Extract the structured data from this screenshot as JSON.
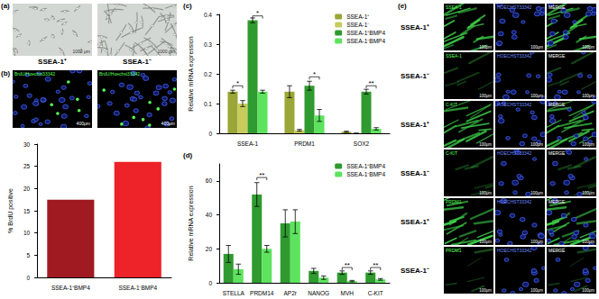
{
  "images": {
    "panel_labels": [
      "(a)",
      "(b)",
      "(c)",
      "(d)",
      "(e)"
    ],
    "a": {
      "captions": [
        "SSEA-1⁺",
        "SSEA-1⁻"
      ],
      "scale_bar": "1000 μm"
    },
    "b": {
      "stain": "BrdU/Hoechst33342",
      "scale_bar": "400μm"
    },
    "e": {
      "row_labels": [
        "SSEA-1⁺",
        "SSEA-1⁻",
        "SSEA-1⁺",
        "SSEA-1⁻",
        "SSEA-1⁺",
        "SSEA-1⁻"
      ],
      "markers": [
        "SSEA-1",
        "C-KIT",
        "PRDM1"
      ],
      "counterstain": "HOECHST33342",
      "merge": "MERGE",
      "scale_bar": "100μm"
    }
  },
  "chart_data": [
    {
      "type": "bar",
      "categories": [
        "SSEA-1⁺BMP4",
        "SSEA-1⁻BMP4"
      ],
      "values": [
        17.5,
        26
      ],
      "colors": [
        "#a01a22",
        "#ee2229"
      ],
      "y_label": "% BrdU positive",
      "ylim": [
        0,
        30
      ],
      "yticks": [
        0,
        5,
        10,
        15,
        20,
        25,
        30
      ],
      "grid": false
    },
    {
      "type": "bar",
      "categories": [
        "SSEA-1",
        "PRDM1",
        "SOX2"
      ],
      "series": [
        {
          "name": "SSEA-1⁺",
          "color": "#9aa637",
          "values": [
            0.14,
            0.14,
            0.005
          ],
          "errors": [
            0.005,
            0.02,
            0.002
          ]
        },
        {
          "name": "SSEA-1⁻",
          "color": "#c8cc5a",
          "values": [
            0.1,
            0.01,
            0
          ],
          "errors": [
            0.01,
            0.003,
            0
          ]
        },
        {
          "name": "SSEA-1⁺BMP4",
          "color": "#2f9a2f",
          "values": [
            0.38,
            0.16,
            0.14
          ],
          "errors": [
            0.008,
            0.015,
            0.008
          ]
        },
        {
          "name": "SSEA-1⁻BMP4",
          "color": "#5ee35e",
          "values": [
            0.14,
            0.06,
            0.015
          ],
          "errors": [
            0.005,
            0.02,
            0.004
          ]
        }
      ],
      "significance": [
        {
          "category": "SSEA-1",
          "between": [
            "SSEA-1⁺",
            "SSEA-1⁻"
          ],
          "y": 0.16,
          "label": "*"
        },
        {
          "category": "SSEA-1",
          "between": [
            "SSEA-1⁺BMP4",
            "SSEA-1⁻BMP4"
          ],
          "y": 0.395,
          "label": "*"
        },
        {
          "category": "PRDM1",
          "between": [
            "SSEA-1⁺BMP4",
            "SSEA-1⁻BMP4"
          ],
          "y": 0.19,
          "label": "*"
        },
        {
          "category": "SOX2",
          "between": [
            "SSEA-1⁺BMP4",
            "SSEA-1⁻BMP4"
          ],
          "y": 0.16,
          "label": "**"
        }
      ],
      "y_label": "Relative mRNA expression",
      "ylim": [
        0,
        0.4
      ],
      "yticks": [
        0,
        0.1,
        0.2,
        0.3,
        0.4
      ],
      "legend": "top-right",
      "grid": false
    },
    {
      "type": "bar",
      "categories": [
        "STELLA",
        "PRDM14",
        "AP2r",
        "NANOG",
        "MVH",
        "C-KIT"
      ],
      "series": [
        {
          "name": "SSEA-1⁺BMP4",
          "color": "#2f9a2f",
          "values": [
            17,
            52,
            35,
            7,
            6,
            6
          ],
          "errors": [
            5,
            7,
            8,
            1.5,
            1,
            1
          ]
        },
        {
          "name": "SSEA-1⁻BMP4",
          "color": "#5ee35e",
          "values": [
            8,
            20,
            36,
            3,
            1,
            2
          ],
          "errors": [
            3,
            2,
            7,
            1,
            0.4,
            0.5
          ]
        }
      ],
      "significance": [
        {
          "category": "PRDM14",
          "between": [
            "SSEA-1⁺BMP4",
            "SSEA-1⁻BMP4"
          ],
          "y": 62,
          "label": "**"
        },
        {
          "category": "MVH",
          "between": [
            "SSEA-1⁺BMP4",
            "SSEA-1⁻BMP4"
          ],
          "y": 9,
          "label": "**"
        },
        {
          "category": "C-KIT",
          "between": [
            "SSEA-1⁺BMP4",
            "SSEA-1⁻BMP4"
          ],
          "y": 9,
          "label": "**"
        }
      ],
      "y_label": "Relative mRNA expression",
      "ylim": [
        0,
        70
      ],
      "yticks": [
        0,
        20,
        40,
        60
      ],
      "legend": "top-right",
      "grid": false
    }
  ]
}
